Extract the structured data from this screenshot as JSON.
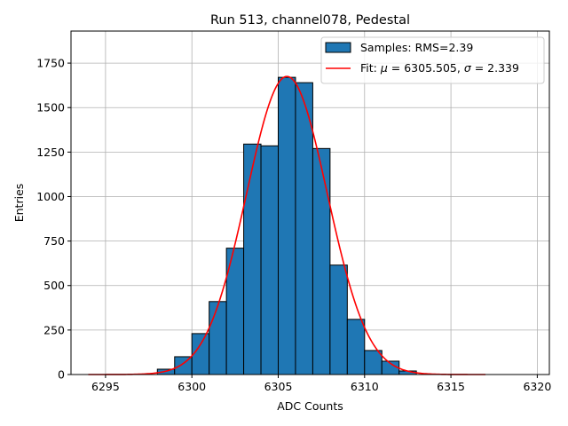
{
  "chart_data": {
    "type": "bar",
    "title": "Run 513, channel078, Pedestal",
    "xlabel": "ADC Counts",
    "ylabel": "Entries",
    "xlim": [
      6293.0,
      6320.7
    ],
    "ylim": [
      0,
      1930
    ],
    "xticks": [
      6295,
      6300,
      6305,
      6310,
      6315,
      6320
    ],
    "yticks": [
      0,
      250,
      500,
      750,
      1000,
      1250,
      1500,
      1750
    ],
    "grid": true,
    "legend_position": "top-right",
    "histogram": {
      "name": "Samples: RMS=2.39",
      "color": "#1f77b4",
      "bin_edges": [
        6298,
        6299,
        6300,
        6301,
        6302,
        6303,
        6304,
        6305,
        6306,
        6307,
        6308,
        6309,
        6310,
        6311,
        6312,
        6313
      ],
      "counts": [
        30,
        100,
        230,
        410,
        710,
        1295,
        1285,
        1670,
        1640,
        1270,
        615,
        310,
        135,
        75,
        20
      ]
    },
    "fit": {
      "name": "Fit: μ = 6305.505, σ = 2.339",
      "legend_prefix": "Fit: ",
      "legend_mu_symbol": "μ",
      "legend_mu_text": " = 6305.505, ",
      "legend_sigma_symbol": "σ",
      "legend_sigma_text": " = 2.339",
      "color": "#ff0000",
      "mu": 6305.505,
      "sigma": 2.339,
      "amplitude": 1675,
      "x_range": [
        6294,
        6317
      ]
    }
  }
}
